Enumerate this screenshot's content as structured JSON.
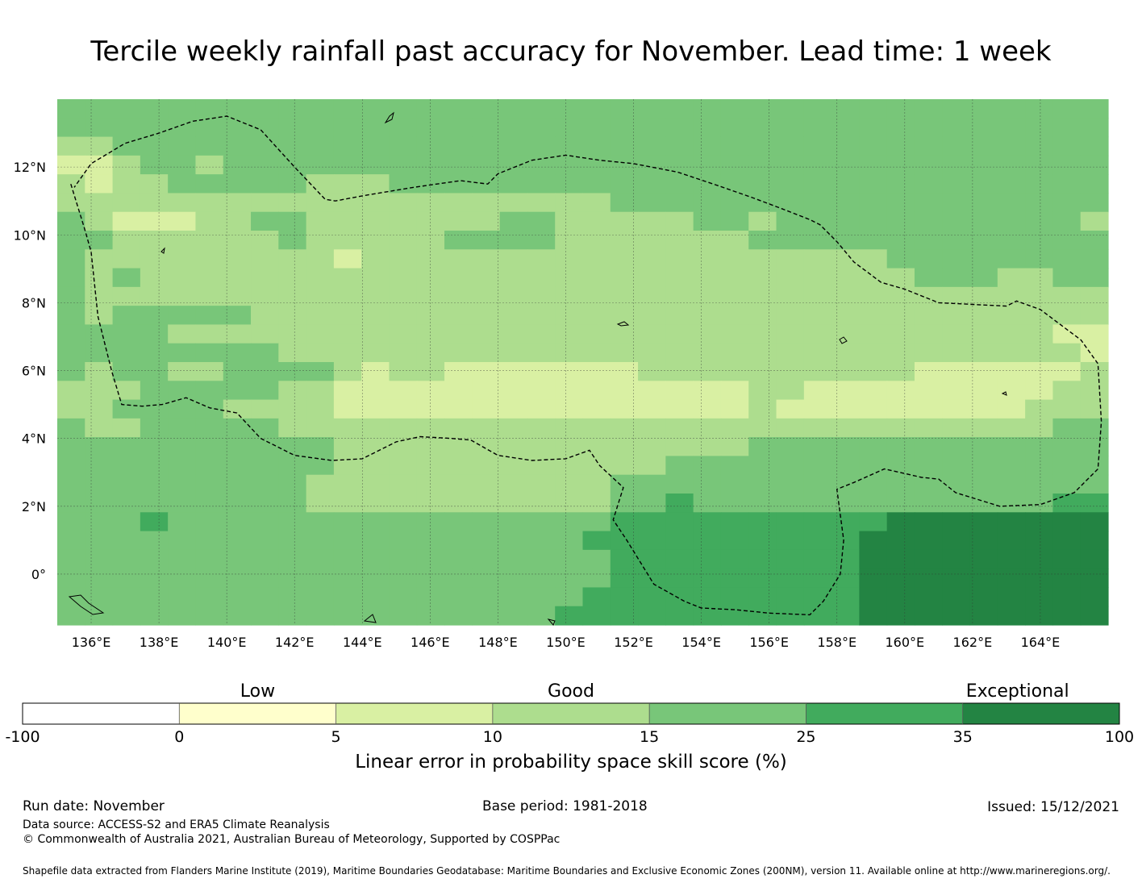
{
  "title": "Tercile weekly rainfall past accuracy for November. Lead time: 1 week",
  "map": {
    "lon_ticks": [
      "136°E",
      "138°E",
      "140°E",
      "142°E",
      "144°E",
      "146°E",
      "148°E",
      "150°E",
      "152°E",
      "154°E",
      "156°E",
      "158°E",
      "160°E",
      "162°E",
      "164°E"
    ],
    "lat_ticks": [
      "12°N",
      "10°N",
      "8°N",
      "6°N",
      "4°N",
      "2°N",
      "0°"
    ],
    "lon_range": [
      135.0,
      166.0
    ],
    "lat_range": [
      -1.5,
      14.0
    ],
    "grid_resolution_deg": 0.833,
    "skill_grid_rows_north_to_south": [
      "44444444444444444444444444444444444444",
      "44444444444444444444444444444444444444",
      "33444444444444444444444444444444444444",
      "22344344444444444444444444444444444444",
      "32334444433344444444444444444444444444",
      "33333333333333333333444444444444444444",
      "43222334433333334433333443444444444443",
      "44333333433333444433333334444444444444",
      "43333333332333333333333333333344444444",
      "43433333333333333333333333333334443344",
      "43333333333333333333333333333333333333",
      "43444443333333333333333333333333333333",
      "44443333333333333333333333333333333322",
      "44444444333333333333333333333333333332",
      "43443344443233222222233333333332222223",
      "33344444332222222222222223322222222233",
      "33444433332222222222222223222222222333",
      "43344444333333333333333333333333333344",
      "44444444443333333333333334444444444444",
      "44444444443333333333334444444444444444",
      "44444444433333333333444444444444444444",
      "44444444433333333333445444444444444455",
      "44454444444444444444555555555566666666",
      "44444444444444444445555555555666666666",
      "44444444444444444444555555555666666666",
      "44444444444444444444555555555666666666",
      "44444444444444444445555555555666666666",
      "44444444444444444455555555555666666666"
    ],
    "skill_colors": [
      "#ffffff",
      "#ffffcc",
      "#d9f0a3",
      "#addd8e",
      "#78c679",
      "#41ab5d",
      "#238443"
    ],
    "eez_boundary": [
      [
        135.4,
        11.5
      ],
      [
        135.8,
        10.2
      ],
      [
        136.0,
        9.5
      ],
      [
        136.2,
        7.6
      ],
      [
        136.6,
        6.0
      ],
      [
        136.9,
        5.0
      ],
      [
        137.5,
        4.95
      ],
      [
        138.1,
        5.0
      ],
      [
        138.8,
        5.2
      ],
      [
        139.5,
        4.9
      ],
      [
        140.3,
        4.75
      ],
      [
        141.0,
        4.0
      ],
      [
        142.0,
        3.5
      ],
      [
        143.1,
        3.35
      ],
      [
        144.0,
        3.4
      ],
      [
        145.0,
        3.9
      ],
      [
        145.7,
        4.05
      ],
      [
        146.6,
        4.0
      ],
      [
        147.2,
        3.95
      ],
      [
        148.0,
        3.5
      ],
      [
        149.0,
        3.35
      ],
      [
        150.0,
        3.4
      ],
      [
        150.7,
        3.65
      ],
      [
        151.0,
        3.2
      ],
      [
        151.7,
        2.55
      ],
      [
        151.4,
        1.6
      ],
      [
        151.8,
        1.0
      ],
      [
        152.6,
        -0.3
      ],
      [
        153.5,
        -0.8
      ],
      [
        154.0,
        -1.0
      ],
      [
        155.0,
        -1.05
      ],
      [
        156.0,
        -1.15
      ],
      [
        157.2,
        -1.2
      ],
      [
        157.6,
        -0.8
      ],
      [
        158.1,
        0.0
      ],
      [
        158.2,
        1.0
      ],
      [
        158.0,
        2.5
      ],
      [
        158.5,
        2.7
      ],
      [
        159.4,
        3.1
      ],
      [
        160.5,
        2.85
      ],
      [
        161.0,
        2.8
      ],
      [
        161.5,
        2.4
      ],
      [
        162.8,
        2.0
      ],
      [
        164.0,
        2.05
      ],
      [
        165.0,
        2.4
      ],
      [
        165.7,
        3.1
      ],
      [
        165.8,
        4.5
      ],
      [
        165.7,
        6.2
      ],
      [
        165.2,
        6.9
      ],
      [
        164.0,
        7.8
      ],
      [
        163.3,
        8.05
      ],
      [
        163.0,
        7.9
      ],
      [
        162.0,
        7.95
      ],
      [
        161.0,
        8.0
      ],
      [
        160.0,
        8.4
      ],
      [
        159.3,
        8.6
      ],
      [
        158.5,
        9.2
      ],
      [
        158.0,
        9.8
      ],
      [
        157.5,
        10.3
      ],
      [
        157.2,
        10.45
      ],
      [
        156.3,
        10.8
      ],
      [
        155.5,
        11.1
      ],
      [
        154.5,
        11.45
      ],
      [
        153.3,
        11.85
      ],
      [
        152.0,
        12.1
      ],
      [
        151.0,
        12.2
      ],
      [
        150.0,
        12.35
      ],
      [
        149.0,
        12.2
      ],
      [
        148.0,
        11.8
      ],
      [
        147.7,
        11.5
      ],
      [
        146.9,
        11.6
      ],
      [
        145.5,
        11.4
      ],
      [
        144.0,
        11.15
      ],
      [
        143.2,
        11.0
      ],
      [
        142.9,
        11.05
      ],
      [
        142.0,
        12.0
      ],
      [
        141.0,
        13.1
      ],
      [
        140.0,
        13.5
      ],
      [
        139.0,
        13.35
      ],
      [
        138.0,
        13.0
      ],
      [
        137.0,
        12.7
      ],
      [
        136.0,
        12.1
      ],
      [
        135.5,
        11.4
      ]
    ]
  },
  "colorbar": {
    "categories": [
      "Low",
      "Good",
      "Exceptional"
    ],
    "ticks": [
      "-100",
      "0",
      "5",
      "10",
      "15",
      "25",
      "35",
      "100"
    ],
    "label": "Linear error in probability space skill score (%)"
  },
  "footer": {
    "run_date": "Run date: November",
    "base_period": "Base period: 1981-2018",
    "issued": "Issued: 15/12/2021",
    "data_source": "Data source: ACCESS-S2 and ERA5 Climate Reanalysis",
    "copyright": "© Commonwealth of Australia 2021, Australian Bureau of Meteorology, Supported by COSPPac",
    "shapefile": "Shapefile data extracted from Flanders Marine Institute (2019), Maritime Boundaries Geodatabase: Maritime Boundaries and Exclusive Economic Zones (200NM), version 11. Available online at http://www.marineregions.org/."
  }
}
